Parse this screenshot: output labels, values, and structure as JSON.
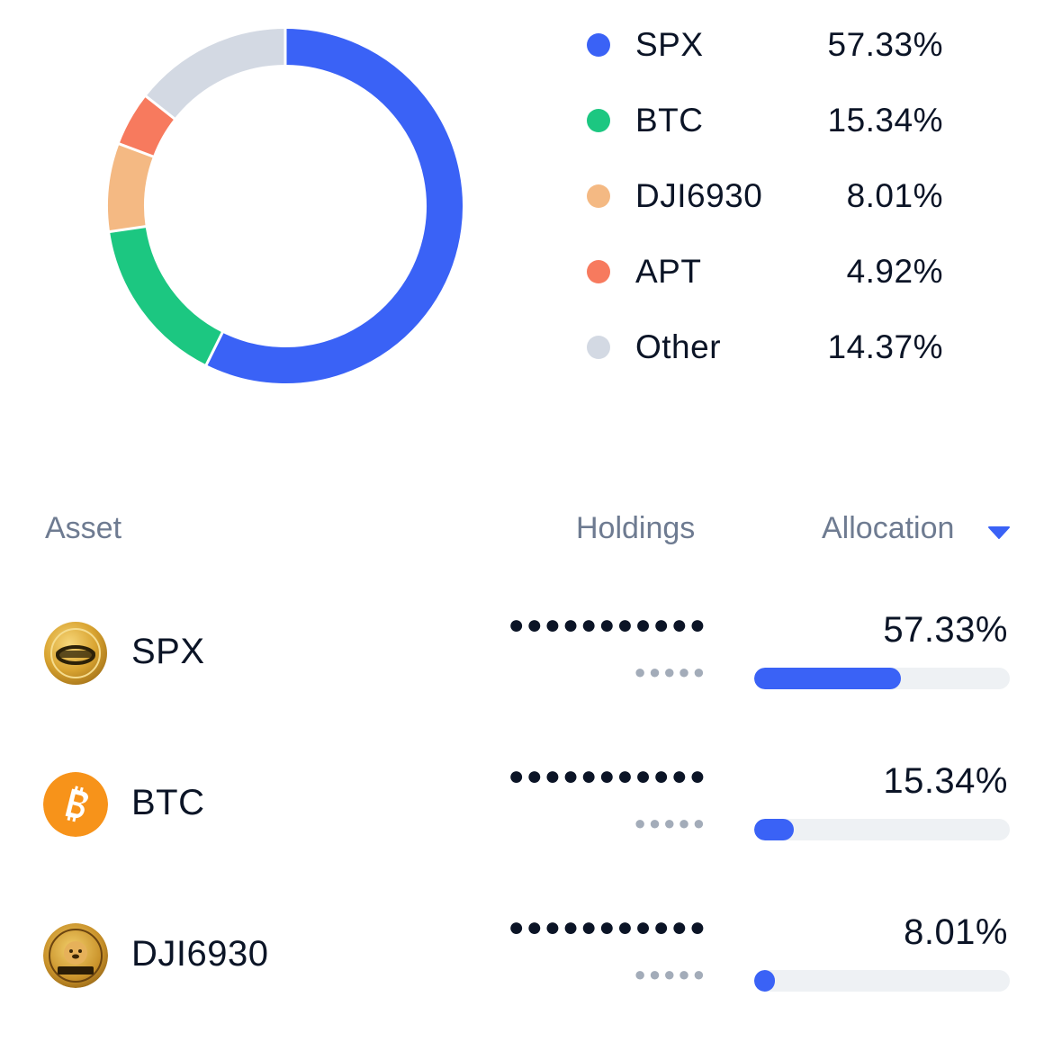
{
  "allocation_chart": {
    "segments": [
      {
        "name": "SPX",
        "percent": 57.33,
        "color": "#3a62f6"
      },
      {
        "name": "BTC",
        "percent": 15.34,
        "color": "#1cc781"
      },
      {
        "name": "DJI6930",
        "percent": 8.01,
        "color": "#f4b983"
      },
      {
        "name": "APT",
        "percent": 4.92,
        "color": "#f77a5e"
      },
      {
        "name": "Other",
        "percent": 14.37,
        "color": "#d3d9e3"
      }
    ]
  },
  "legend": [
    {
      "label": "SPX",
      "percent": "57.33%",
      "color": "#3a62f6"
    },
    {
      "label": "BTC",
      "percent": "15.34%",
      "color": "#1cc781"
    },
    {
      "label": "DJI6930",
      "percent": "8.01%",
      "color": "#f4b983"
    },
    {
      "label": "APT",
      "percent": "4.92%",
      "color": "#f77a5e"
    },
    {
      "label": "Other",
      "percent": "14.37%",
      "color": "#d3d9e3"
    }
  ],
  "table": {
    "headers": {
      "asset": "Asset",
      "holdings": "Holdings",
      "allocation": "Allocation"
    },
    "sort_icon": "caret-down-icon",
    "rows": [
      {
        "name": "SPX",
        "icon": "spx-coin-icon",
        "holdings_masked": "●●●●●●●●●●●",
        "value_masked": "●●●●●",
        "allocation": "57.33%",
        "allocation_fraction": 0.5733
      },
      {
        "name": "BTC",
        "icon": "bitcoin-icon",
        "holdings_masked": "●●●●●●●●●●●",
        "value_masked": "●●●●●",
        "allocation": "15.34%",
        "allocation_fraction": 0.1534
      },
      {
        "name": "DJI6930",
        "icon": "dji6930-coin-icon",
        "holdings_masked": "●●●●●●●●●●●",
        "value_masked": "●●●●●",
        "allocation": "8.01%",
        "allocation_fraction": 0.0801
      }
    ]
  },
  "colors": {
    "accent": "#3a62f6",
    "bar_track": "#eef1f4",
    "muted_text": "#6e7b91"
  }
}
